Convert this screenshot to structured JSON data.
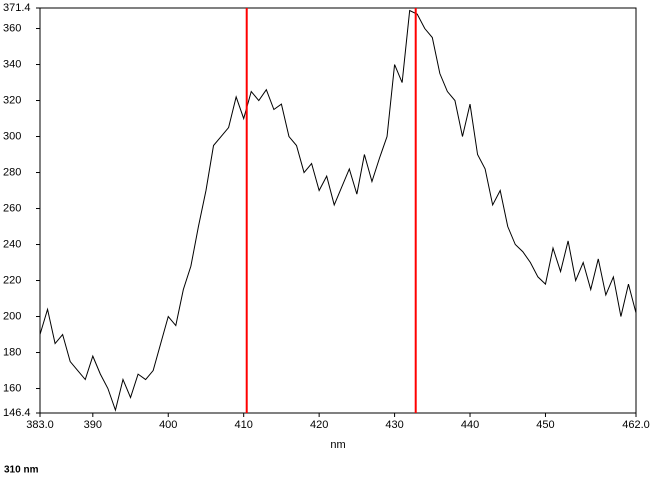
{
  "chart_data": {
    "type": "line",
    "x_label": "nm",
    "footer": "310 nm",
    "x": [
      383,
      384,
      385,
      386,
      387,
      388,
      389,
      390,
      391,
      392,
      393,
      394,
      395,
      396,
      397,
      398,
      399,
      400,
      401,
      402,
      403,
      404,
      405,
      406,
      407,
      408,
      409,
      410,
      411,
      412,
      413,
      414,
      415,
      416,
      417,
      418,
      419,
      420,
      421,
      422,
      423,
      424,
      425,
      426,
      427,
      428,
      429,
      430,
      431,
      432,
      433,
      434,
      435,
      436,
      437,
      438,
      439,
      440,
      441,
      442,
      443,
      444,
      445,
      446,
      447,
      448,
      449,
      450,
      451,
      452,
      453,
      454,
      455,
      456,
      457,
      458,
      459,
      460,
      461,
      462
    ],
    "series": [
      {
        "color": "#000000",
        "values": [
          190,
          204,
          185,
          190,
          175,
          170,
          165,
          178,
          168,
          160,
          148,
          165,
          155,
          168,
          165,
          170,
          185,
          200,
          195,
          215,
          228,
          250,
          270,
          295,
          300,
          305,
          322,
          310,
          325,
          320,
          326,
          315,
          318,
          300,
          295,
          280,
          285,
          270,
          278,
          262,
          272,
          282,
          268,
          290,
          275,
          288,
          300,
          340,
          330,
          370,
          368,
          360,
          355,
          335,
          325,
          320,
          300,
          318,
          290,
          282,
          262,
          270,
          250,
          240,
          236,
          230,
          222,
          218,
          238,
          225,
          242,
          220,
          230,
          215,
          232,
          212,
          222,
          200,
          218,
          202
        ]
      }
    ],
    "markers": [
      410.4,
      432.8
    ],
    "marker_color": "#ff0000",
    "xlim": [
      383,
      462
    ],
    "ylim": [
      146.4,
      371.4
    ],
    "xticks": [
      {
        "value": 383,
        "label": "383.0"
      },
      390,
      400,
      410,
      420,
      430,
      440,
      450,
      {
        "value": 462,
        "label": "462.0"
      }
    ],
    "yticks": [
      146.4,
      160,
      180,
      200,
      220,
      240,
      260,
      280,
      300,
      320,
      340,
      360,
      371.4
    ]
  }
}
